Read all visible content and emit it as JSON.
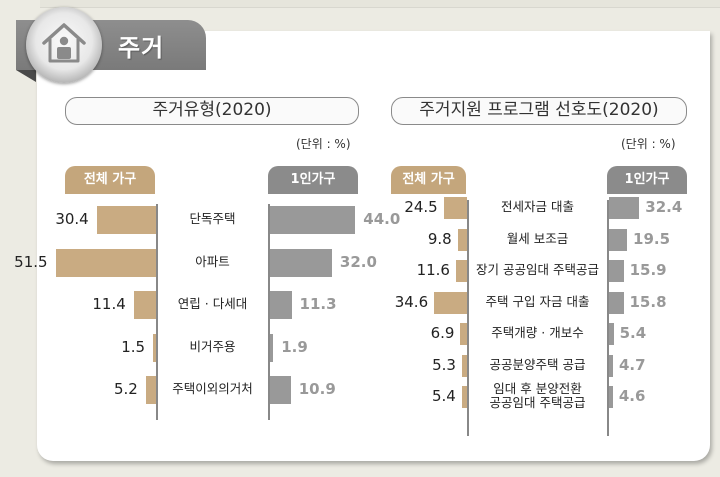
{
  "section": {
    "title": "주거",
    "icon": "house-person-icon"
  },
  "panels": [
    {
      "title": "주거유형(2020)",
      "unit": "(단위 : %)",
      "legend_left": "전체 가구",
      "legend_right": "1인가구"
    },
    {
      "title": "주거지원 프로그램 선호도(2020)",
      "unit": "(단위 : %)",
      "legend_left": "전체 가구",
      "legend_right": "1인가구"
    }
  ],
  "chart_data": [
    {
      "type": "bar",
      "orientation": "horizontal-butterfly",
      "title": "주거유형(2020)",
      "unit": "%",
      "categories": [
        "단독주택",
        "아파트",
        "연립 · 다세대",
        "비거주용",
        "주택이외의거처"
      ],
      "series": [
        {
          "name": "전체 가구",
          "color": "#c9ab82",
          "values": [
            30.4,
            51.5,
            11.4,
            1.5,
            5.2
          ],
          "labels": [
            "30.4",
            "51.5",
            "11.4",
            "1.5",
            "5.2"
          ]
        },
        {
          "name": "1인가구",
          "color": "#999999",
          "values": [
            44.0,
            32.0,
            11.3,
            1.9,
            10.9
          ],
          "labels": [
            "44.0",
            "32.0",
            "11.3",
            "1.9",
            "10.9"
          ]
        }
      ]
    },
    {
      "type": "bar",
      "orientation": "horizontal-butterfly",
      "title": "주거지원 프로그램 선호도(2020)",
      "unit": "%",
      "categories": [
        "전세자금 대출",
        "월세 보조금",
        "장기 공공임대 주택공급",
        "주택 구입 자금 대출",
        "주택개량 · 개보수",
        "공공분양주택 공급",
        "임대 후 분양전환 공공임대 주택공급"
      ],
      "category_lines": [
        [
          "전세자금 대출"
        ],
        [
          "월세 보조금"
        ],
        [
          "장기 공공임대 주택공급"
        ],
        [
          "주택 구입 자금 대출"
        ],
        [
          "주택개량 · 개보수"
        ],
        [
          "공공분양주택 공급"
        ],
        [
          "임대 후 분양전환",
          "공공임대 주택공급"
        ]
      ],
      "series": [
        {
          "name": "전체 가구",
          "color": "#c9ab82",
          "values": [
            24.5,
            9.8,
            11.6,
            34.6,
            6.9,
            5.3,
            5.4
          ],
          "labels": [
            "24.5",
            "9.8",
            "11.6",
            "34.6",
            "6.9",
            "5.3",
            "5.4"
          ]
        },
        {
          "name": "1인가구",
          "color": "#999999",
          "values": [
            32.4,
            19.5,
            15.9,
            15.8,
            5.4,
            4.7,
            4.6
          ],
          "labels": [
            "32.4",
            "19.5",
            "15.9",
            "15.8",
            "5.4",
            "4.7",
            "4.6"
          ]
        }
      ]
    }
  ]
}
